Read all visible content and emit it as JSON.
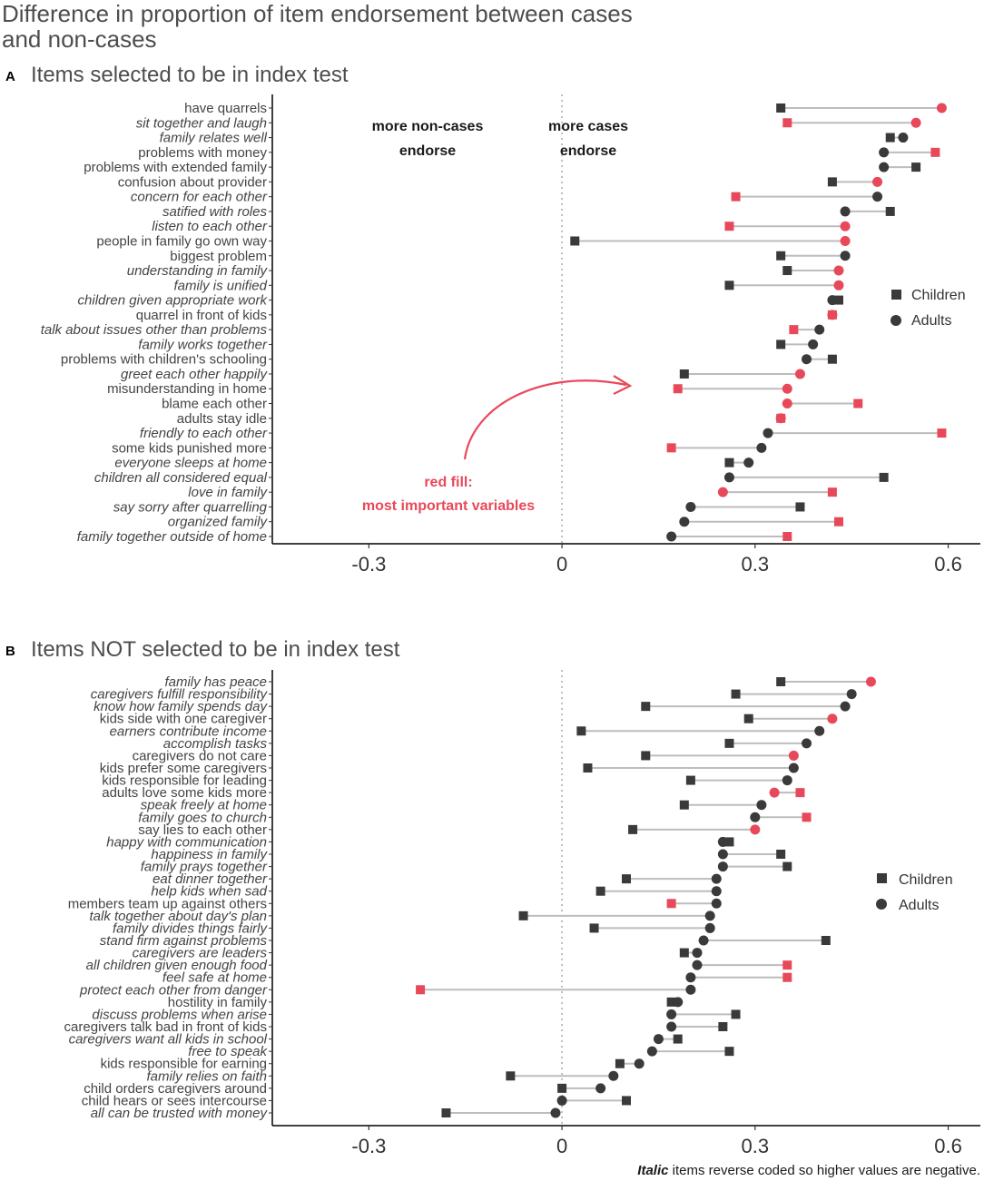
{
  "title": "Difference in proportion of item endorsement between cases and non-cases",
  "title_lines": [
    "Difference in proportion of item endorsement between cases",
    "and non-cases"
  ],
  "colors": {
    "dark": "#3a3a3a",
    "red": "#e8495a",
    "segment": "#bdbdbd",
    "zero_line": "#b0b0b0"
  },
  "legend": {
    "children": "Children",
    "adults": "Adults"
  },
  "caption": {
    "bold": "Italic",
    "rest": " items reverse coded so higher values are negative."
  },
  "chart_data": [
    {
      "type": "dumbbell",
      "panel_tag": "A",
      "title": "Items selected to be in index test",
      "xlim": [
        -0.45,
        0.65
      ],
      "xticks": [
        -0.3,
        0,
        0.3,
        0.6
      ],
      "xtick_labels": [
        "-0.3",
        "0",
        "0.3",
        "0.6"
      ],
      "region_labels": {
        "left": [
          "more non-cases",
          "endorse"
        ],
        "right": [
          "more cases",
          "endorse"
        ]
      },
      "annotation": [
        "red fill:",
        "most important variables"
      ],
      "items": [
        {
          "label": "have quarrels",
          "italic": false,
          "children": 0.34,
          "adults": 0.59,
          "children_red": false,
          "adults_red": true
        },
        {
          "label": "sit together and laugh",
          "italic": true,
          "children": 0.35,
          "adults": 0.55,
          "children_red": true,
          "adults_red": true
        },
        {
          "label": "family relates well",
          "italic": true,
          "children": 0.51,
          "adults": 0.53,
          "children_red": false,
          "adults_red": false
        },
        {
          "label": "problems with money",
          "italic": false,
          "children": 0.58,
          "adults": 0.5,
          "children_red": true,
          "adults_red": false
        },
        {
          "label": "problems with extended family",
          "italic": false,
          "children": 0.55,
          "adults": 0.5,
          "children_red": false,
          "adults_red": false
        },
        {
          "label": "confusion about provider",
          "italic": false,
          "children": 0.42,
          "adults": 0.49,
          "children_red": false,
          "adults_red": true
        },
        {
          "label": "concern for each other",
          "italic": true,
          "children": 0.27,
          "adults": 0.49,
          "children_red": true,
          "adults_red": false
        },
        {
          "label": "satified with roles",
          "italic": true,
          "children": 0.51,
          "adults": 0.44,
          "children_red": false,
          "adults_red": false
        },
        {
          "label": "listen to each other",
          "italic": true,
          "children": 0.26,
          "adults": 0.44,
          "children_red": true,
          "adults_red": true
        },
        {
          "label": "people in family go own way",
          "italic": false,
          "children": 0.02,
          "adults": 0.44,
          "children_red": false,
          "adults_red": true
        },
        {
          "label": "biggest problem",
          "italic": false,
          "children": 0.34,
          "adults": 0.44,
          "children_red": false,
          "adults_red": false
        },
        {
          "label": "understanding in family",
          "italic": true,
          "children": 0.35,
          "adults": 0.43,
          "children_red": false,
          "adults_red": true
        },
        {
          "label": "family is unified",
          "italic": true,
          "children": 0.26,
          "adults": 0.43,
          "children_red": false,
          "adults_red": true
        },
        {
          "label": "children given appropriate work",
          "italic": true,
          "children": 0.43,
          "adults": 0.42,
          "children_red": false,
          "adults_red": false
        },
        {
          "label": "quarrel in front of kids",
          "italic": false,
          "children": 0.42,
          "adults": 0.42,
          "children_red": true,
          "adults_red": true
        },
        {
          "label": "talk about issues other than problems",
          "italic": true,
          "children": 0.36,
          "adults": 0.4,
          "children_red": true,
          "adults_red": false
        },
        {
          "label": "family works together",
          "italic": true,
          "children": 0.34,
          "adults": 0.39,
          "children_red": false,
          "adults_red": false
        },
        {
          "label": "problems with children's schooling",
          "italic": false,
          "children": 0.42,
          "adults": 0.38,
          "children_red": false,
          "adults_red": false
        },
        {
          "label": "greet each other happily",
          "italic": true,
          "children": 0.19,
          "adults": 0.37,
          "children_red": false,
          "adults_red": true
        },
        {
          "label": "misunderstanding in home",
          "italic": false,
          "children": 0.18,
          "adults": 0.35,
          "children_red": true,
          "adults_red": true
        },
        {
          "label": "blame each other",
          "italic": false,
          "children": 0.46,
          "adults": 0.35,
          "children_red": true,
          "adults_red": true
        },
        {
          "label": "adults stay idle",
          "italic": false,
          "children": 0.34,
          "adults": 0.34,
          "children_red": true,
          "adults_red": true
        },
        {
          "label": "friendly to each other",
          "italic": true,
          "children": 0.59,
          "adults": 0.32,
          "children_red": true,
          "adults_red": false
        },
        {
          "label": "some kids punished more",
          "italic": false,
          "children": 0.17,
          "adults": 0.31,
          "children_red": true,
          "adults_red": false
        },
        {
          "label": "everyone sleeps at home",
          "italic": true,
          "children": 0.26,
          "adults": 0.29,
          "children_red": false,
          "adults_red": false
        },
        {
          "label": "children all considered equal",
          "italic": true,
          "children": 0.5,
          "adults": 0.26,
          "children_red": false,
          "adults_red": false
        },
        {
          "label": "love in family",
          "italic": true,
          "children": 0.42,
          "adults": 0.25,
          "children_red": true,
          "adults_red": true
        },
        {
          "label": "say sorry after quarrelling",
          "italic": true,
          "children": 0.37,
          "adults": 0.2,
          "children_red": false,
          "adults_red": false
        },
        {
          "label": "organized family",
          "italic": true,
          "children": 0.43,
          "adults": 0.19,
          "children_red": true,
          "adults_red": false
        },
        {
          "label": "family together outside of home",
          "italic": true,
          "children": 0.35,
          "adults": 0.17,
          "children_red": true,
          "adults_red": false
        }
      ]
    },
    {
      "type": "dumbbell",
      "panel_tag": "B",
      "title": "Items NOT selected to be in index test",
      "xlim": [
        -0.45,
        0.65
      ],
      "xticks": [
        -0.3,
        0,
        0.3,
        0.6
      ],
      "xtick_labels": [
        "-0.3",
        "0",
        "0.3",
        "0.6"
      ],
      "items": [
        {
          "label": "family has peace",
          "italic": true,
          "children": 0.34,
          "adults": 0.48,
          "children_red": false,
          "adults_red": true
        },
        {
          "label": "caregivers fulfill responsibility",
          "italic": true,
          "children": 0.27,
          "adults": 0.45,
          "children_red": false,
          "adults_red": false
        },
        {
          "label": "know how family spends day",
          "italic": true,
          "children": 0.13,
          "adults": 0.44,
          "children_red": false,
          "adults_red": false
        },
        {
          "label": "kids side with one caregiver",
          "italic": false,
          "children": 0.29,
          "adults": 0.42,
          "children_red": false,
          "adults_red": true
        },
        {
          "label": "earners contribute income",
          "italic": true,
          "children": 0.03,
          "adults": 0.4,
          "children_red": false,
          "adults_red": false
        },
        {
          "label": "accomplish tasks",
          "italic": true,
          "children": 0.26,
          "adults": 0.38,
          "children_red": false,
          "adults_red": false
        },
        {
          "label": "caregivers do not care",
          "italic": false,
          "children": 0.13,
          "adults": 0.36,
          "children_red": false,
          "adults_red": true
        },
        {
          "label": "kids prefer some caregivers",
          "italic": false,
          "children": 0.04,
          "adults": 0.36,
          "children_red": false,
          "adults_red": false
        },
        {
          "label": "kids responsible for leading",
          "italic": false,
          "children": 0.2,
          "adults": 0.35,
          "children_red": false,
          "adults_red": false
        },
        {
          "label": "adults love some kids more",
          "italic": false,
          "children": 0.37,
          "adults": 0.33,
          "children_red": true,
          "adults_red": true
        },
        {
          "label": "speak freely at home",
          "italic": true,
          "children": 0.19,
          "adults": 0.31,
          "children_red": false,
          "adults_red": false
        },
        {
          "label": "family goes to church",
          "italic": true,
          "children": 0.38,
          "adults": 0.3,
          "children_red": true,
          "adults_red": false
        },
        {
          "label": "say lies to each other",
          "italic": false,
          "children": 0.11,
          "adults": 0.3,
          "children_red": false,
          "adults_red": true
        },
        {
          "label": "happy with communication",
          "italic": true,
          "children": 0.26,
          "adults": 0.25,
          "children_red": false,
          "adults_red": false
        },
        {
          "label": "happiness in family",
          "italic": true,
          "children": 0.34,
          "adults": 0.25,
          "children_red": false,
          "adults_red": false
        },
        {
          "label": "family prays together",
          "italic": true,
          "children": 0.35,
          "adults": 0.25,
          "children_red": false,
          "adults_red": false
        },
        {
          "label": "eat dinner together",
          "italic": true,
          "children": 0.1,
          "adults": 0.24,
          "children_red": false,
          "adults_red": false
        },
        {
          "label": "help kids when sad",
          "italic": true,
          "children": 0.06,
          "adults": 0.24,
          "children_red": false,
          "adults_red": false
        },
        {
          "label": "members team up against others",
          "italic": false,
          "children": 0.17,
          "adults": 0.24,
          "children_red": true,
          "adults_red": false
        },
        {
          "label": "talk together about day's plan",
          "italic": true,
          "children": -0.06,
          "adults": 0.23,
          "children_red": false,
          "adults_red": false
        },
        {
          "label": "family divides things fairly",
          "italic": true,
          "children": 0.05,
          "adults": 0.23,
          "children_red": false,
          "adults_red": false
        },
        {
          "label": "stand firm against problems",
          "italic": true,
          "children": 0.41,
          "adults": 0.22,
          "children_red": false,
          "adults_red": false
        },
        {
          "label": "caregivers are leaders",
          "italic": true,
          "children": 0.19,
          "adults": 0.21,
          "children_red": false,
          "adults_red": false
        },
        {
          "label": "all children given enough food",
          "italic": true,
          "children": 0.35,
          "adults": 0.21,
          "children_red": true,
          "adults_red": false
        },
        {
          "label": "feel safe at home",
          "italic": true,
          "children": 0.35,
          "adults": 0.2,
          "children_red": true,
          "adults_red": false
        },
        {
          "label": "protect each other from danger",
          "italic": true,
          "children": -0.22,
          "adults": 0.2,
          "children_red": true,
          "adults_red": false
        },
        {
          "label": "hostility in family",
          "italic": false,
          "children": 0.17,
          "adults": 0.18,
          "children_red": false,
          "adults_red": false
        },
        {
          "label": "discuss problems when arise",
          "italic": true,
          "children": 0.27,
          "adults": 0.17,
          "children_red": false,
          "adults_red": false
        },
        {
          "label": "caregivers talk bad in front of kids",
          "italic": false,
          "children": 0.25,
          "adults": 0.17,
          "children_red": false,
          "adults_red": false
        },
        {
          "label": "caregivers want all kids in school",
          "italic": true,
          "children": 0.18,
          "adults": 0.15,
          "children_red": false,
          "adults_red": false
        },
        {
          "label": "free to speak",
          "italic": true,
          "children": 0.26,
          "adults": 0.14,
          "children_red": false,
          "adults_red": false
        },
        {
          "label": "kids responsible for earning",
          "italic": false,
          "children": 0.09,
          "adults": 0.12,
          "children_red": false,
          "adults_red": false
        },
        {
          "label": "family relies on faith",
          "italic": true,
          "children": -0.08,
          "adults": 0.08,
          "children_red": false,
          "adults_red": false
        },
        {
          "label": "child orders caregivers around",
          "italic": false,
          "children": 0.0,
          "adults": 0.06,
          "children_red": false,
          "adults_red": false
        },
        {
          "label": "child hears or sees intercourse",
          "italic": false,
          "children": 0.1,
          "adults": 0.0,
          "children_red": false,
          "adults_red": false
        },
        {
          "label": "all can be trusted with money",
          "italic": true,
          "children": -0.18,
          "adults": -0.01,
          "children_red": false,
          "adults_red": false
        }
      ]
    }
  ]
}
